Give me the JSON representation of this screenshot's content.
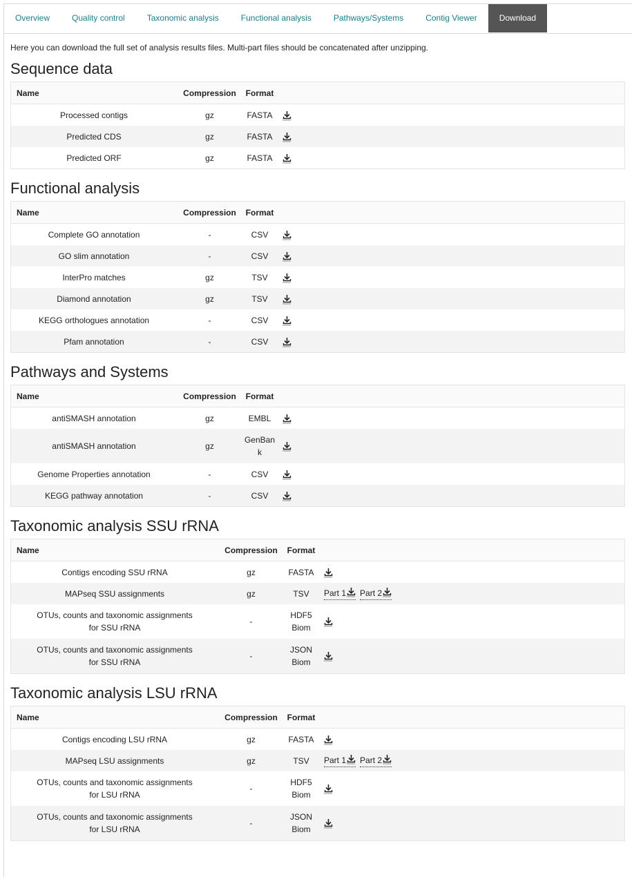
{
  "tabs": [
    {
      "label": "Overview",
      "active": false
    },
    {
      "label": "Quality control",
      "active": false
    },
    {
      "label": "Taxonomic analysis",
      "active": false
    },
    {
      "label": "Functional analysis",
      "active": false
    },
    {
      "label": "Pathways/Systems",
      "active": false
    },
    {
      "label": "Contig Viewer",
      "active": false
    },
    {
      "label": "Download",
      "active": true
    }
  ],
  "intro": "Here you can download the full set of analysis results files. Multi-part files should be concatenated after unzipping.",
  "columns": {
    "name": "Name",
    "compression": "Compression",
    "format": "Format"
  },
  "icons": {
    "download": "download-icon"
  },
  "colors": {
    "tab_text": "#1a7e8a",
    "active_tab_bg": "#555555"
  },
  "sections": [
    {
      "title": "Sequence data",
      "rows": [
        {
          "name": "Processed contigs",
          "compression": "gz",
          "format": "FASTA",
          "parts": []
        },
        {
          "name": "Predicted CDS",
          "compression": "gz",
          "format": "FASTA",
          "parts": []
        },
        {
          "name": "Predicted ORF",
          "compression": "gz",
          "format": "FASTA",
          "parts": []
        }
      ]
    },
    {
      "title": "Functional analysis",
      "rows": [
        {
          "name": "Complete GO annotation",
          "compression": "-",
          "format": "CSV",
          "parts": []
        },
        {
          "name": "GO slim annotation",
          "compression": "-",
          "format": "CSV",
          "parts": []
        },
        {
          "name": "InterPro matches",
          "compression": "gz",
          "format": "TSV",
          "parts": []
        },
        {
          "name": "Diamond annotation",
          "compression": "gz",
          "format": "TSV",
          "parts": []
        },
        {
          "name": "KEGG orthologues annotation",
          "compression": "-",
          "format": "CSV",
          "parts": []
        },
        {
          "name": "Pfam annotation",
          "compression": "-",
          "format": "CSV",
          "parts": []
        }
      ]
    },
    {
      "title": "Pathways and Systems",
      "rows": [
        {
          "name": "antiSMASH annotation",
          "compression": "gz",
          "format": "EMBL",
          "parts": []
        },
        {
          "name": "antiSMASH annotation",
          "compression": "gz",
          "format": "GenBank",
          "parts": []
        },
        {
          "name": "Genome Properties annotation",
          "compression": "-",
          "format": "CSV",
          "parts": []
        },
        {
          "name": "KEGG pathway annotation",
          "compression": "-",
          "format": "CSV",
          "parts": []
        }
      ]
    },
    {
      "title": "Taxonomic analysis SSU rRNA",
      "rows": [
        {
          "name": "Contigs encoding SSU rRNA",
          "compression": "gz",
          "format": "FASTA",
          "parts": []
        },
        {
          "name": "MAPseq SSU assignments",
          "compression": "gz",
          "format": "TSV",
          "parts": [
            "Part 1",
            "Part 2"
          ]
        },
        {
          "name": "OTUs, counts and taxonomic assignments for SSU rRNA",
          "compression": "-",
          "format": "HDF5 Biom",
          "parts": []
        },
        {
          "name": "OTUs, counts and taxonomic assignments for SSU rRNA",
          "compression": "-",
          "format": "JSON Biom",
          "parts": []
        }
      ]
    },
    {
      "title": "Taxonomic analysis LSU rRNA",
      "rows": [
        {
          "name": "Contigs encoding LSU rRNA",
          "compression": "gz",
          "format": "FASTA",
          "parts": []
        },
        {
          "name": "MAPseq LSU assignments",
          "compression": "gz",
          "format": "TSV",
          "parts": [
            "Part 1",
            "Part 2"
          ]
        },
        {
          "name": "OTUs, counts and taxonomic assignments for LSU rRNA",
          "compression": "-",
          "format": "HDF5 Biom",
          "parts": []
        },
        {
          "name": "OTUs, counts and taxonomic assignments for LSU rRNA",
          "compression": "-",
          "format": "JSON Biom",
          "parts": []
        }
      ]
    }
  ]
}
